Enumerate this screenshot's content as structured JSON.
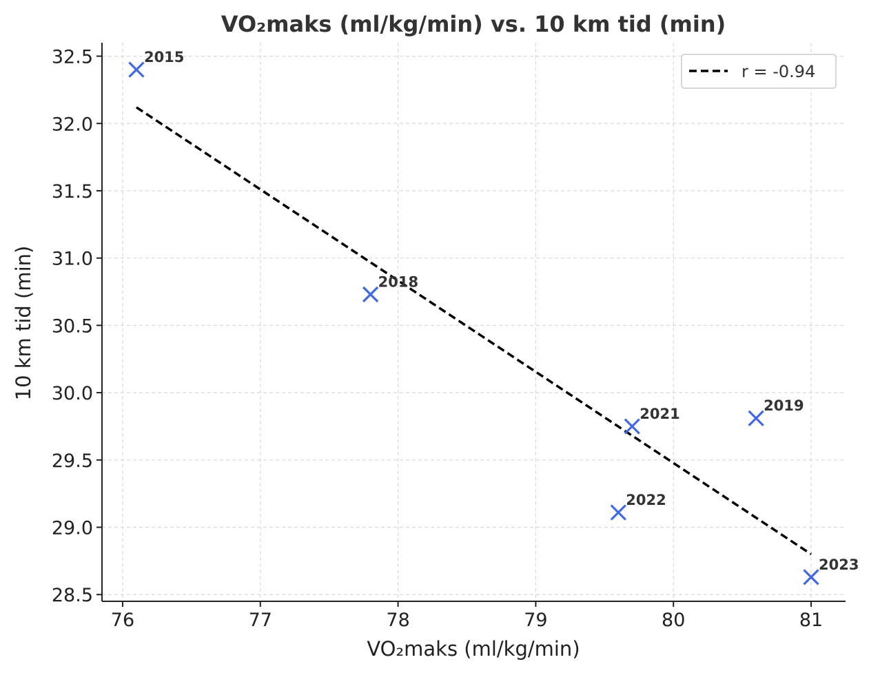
{
  "chart_data": {
    "type": "scatter",
    "title": "VO₂maks (ml/kg/min) vs. 10 km tid (min)",
    "xlabel": "VO₂maks (ml/kg/min)",
    "ylabel": "10 km tid (min)",
    "xlim": [
      75.85,
      81.25
    ],
    "ylim": [
      28.45,
      32.6
    ],
    "x_ticks": [
      76,
      77,
      78,
      79,
      80,
      81
    ],
    "y_ticks": [
      28.5,
      29.0,
      29.5,
      30.0,
      30.5,
      31.0,
      31.5,
      32.0,
      32.5
    ],
    "grid": true,
    "marker_color": "#4169E1",
    "points": [
      {
        "label": "2015",
        "x": 76.1,
        "y": 32.4
      },
      {
        "label": "2018",
        "x": 77.8,
        "y": 30.73
      },
      {
        "label": "2021",
        "x": 79.7,
        "y": 29.75
      },
      {
        "label": "2019",
        "x": 80.6,
        "y": 29.81
      },
      {
        "label": "2022",
        "x": 79.6,
        "y": 29.11
      },
      {
        "label": "2023",
        "x": 81.0,
        "y": 28.63
      }
    ],
    "fit_line": {
      "x": [
        76.1,
        81.0
      ],
      "y": [
        32.12,
        28.8
      ],
      "style": "dashed",
      "color": "#000000"
    },
    "legend": {
      "placement": "top-right",
      "entries": [
        "r = -0.94"
      ]
    }
  }
}
